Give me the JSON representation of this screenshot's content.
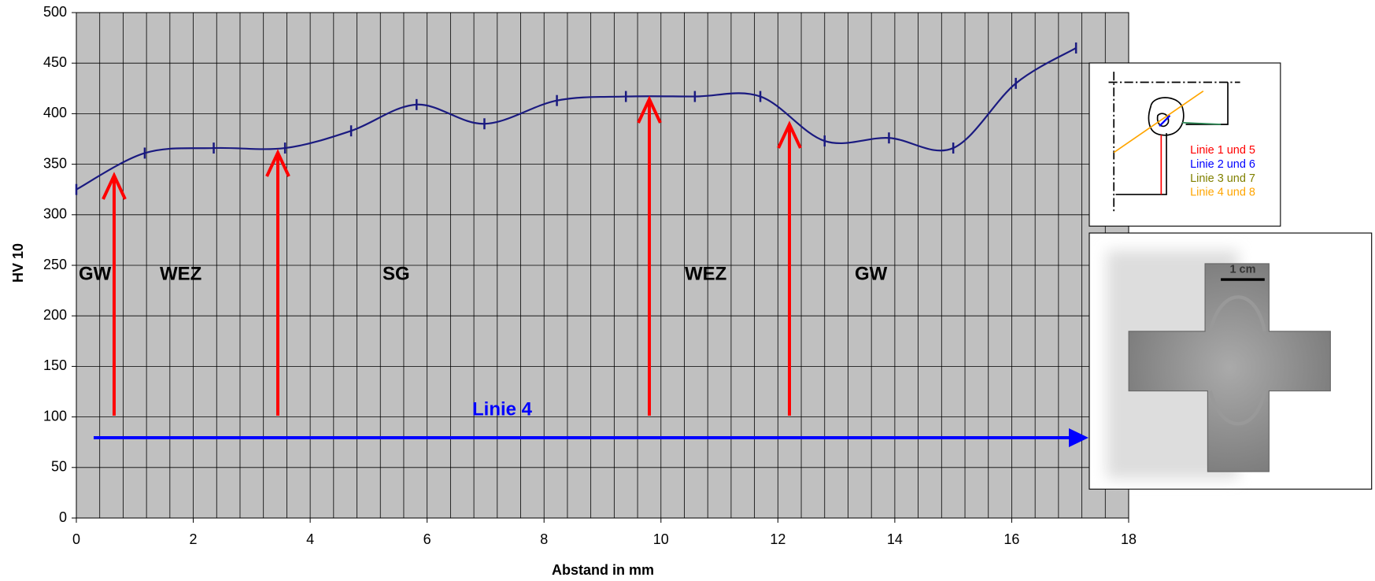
{
  "chart_data": {
    "type": "line",
    "x_label": "Abstand in mm",
    "y_label": "HV 10",
    "series": [
      {
        "name": "Linie 4",
        "color": "#1a1a80",
        "x": [
          0,
          1.17,
          2.35,
          3.57,
          4.7,
          5.82,
          6.98,
          8.22,
          9.4,
          10.58,
          11.7,
          12.8,
          13.9,
          15,
          16.07,
          17.1
        ],
        "values": [
          325,
          361,
          366,
          366,
          383,
          409,
          390,
          413,
          417,
          417,
          417,
          373,
          376,
          366,
          430,
          465
        ]
      }
    ],
    "xlim": [
      0,
      18
    ],
    "xticks": [
      0,
      2,
      4,
      6,
      8,
      10,
      12,
      14,
      16,
      18
    ],
    "ylim": [
      0,
      500
    ],
    "yticks": [
      0,
      50,
      100,
      150,
      200,
      250,
      300,
      350,
      400,
      450,
      500
    ],
    "grid": true,
    "x_minor_step": 0.4,
    "plot_background": "#c0c0c0",
    "annotations": [
      "GW",
      "WEZ",
      "SG",
      "WEZ",
      "GW",
      "Linie 4"
    ],
    "inset_legend": [
      {
        "text": "Linie 1 und 5",
        "color": "#ff0000"
      },
      {
        "text": "Linie 2 und 6",
        "color": "#0000ff"
      },
      {
        "text": "Linie 3 und 7",
        "color": "#808000"
      },
      {
        "text": "Linie 4 und 8",
        "color": "#ffa500"
      }
    ],
    "photo_scale_label": "1 cm"
  }
}
